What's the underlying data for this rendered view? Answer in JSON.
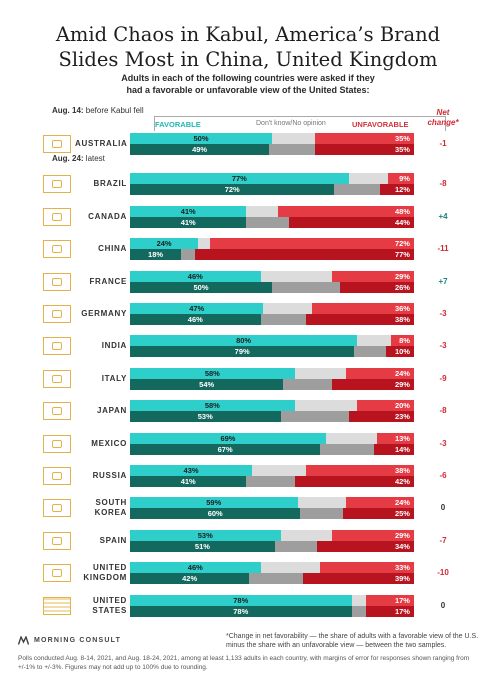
{
  "title_lines": [
    "Amid Chaos in Kabul, America’s Brand",
    "Slides Most in China, United Kingdom"
  ],
  "subtitle_lines": [
    "Adults in each of the following countries were asked if they",
    "had a favorable or unfavorable view of the United States:"
  ],
  "period_before": {
    "date": "Aug. 14:",
    "text": " before Kabul fell"
  },
  "period_latest": {
    "date": "Aug. 24:",
    "text": " latest"
  },
  "legend": {
    "favorable": "FAVORABLE",
    "dont_know": "Don't know/No opinion",
    "unfavorable": "UNFAVORABLE"
  },
  "net_change_label": [
    "Net",
    "change*"
  ],
  "colors": {
    "fav_before": "#2ecfcb",
    "fav_latest": "#14695f",
    "dk_before": "#dcdcdc",
    "dk_latest": "#9e9e9e",
    "unf_before": "#e53b44",
    "unf_latest": "#b8141f",
    "net_negative": "#d02a35",
    "net_positive": "#16857a",
    "net_zero": "#333333",
    "flag_outline": "#e3b24a"
  },
  "chart_data": {
    "type": "bar",
    "orientation": "horizontal",
    "stacked": true,
    "series_order": [
      "Favorable",
      "Don't know/No opinion",
      "Unfavorable"
    ],
    "rows": [
      {
        "country": [
          "AUSTRALIA"
        ],
        "before": {
          "fav": 50,
          "unf": 35,
          "fav_label": "50%",
          "unf_label": "35%"
        },
        "latest": {
          "fav": 49,
          "unf": 35,
          "fav_label": "49%",
          "unf_label": "35%"
        },
        "net": "-1"
      },
      {
        "country": [
          "BRAZIL"
        ],
        "before": {
          "fav": 77,
          "unf": 9,
          "fav_label": "77%",
          "unf_label": "9%"
        },
        "latest": {
          "fav": 72,
          "unf": 12,
          "fav_label": "72%",
          "unf_label": "12%"
        },
        "net": "-8"
      },
      {
        "country": [
          "CANADA"
        ],
        "before": {
          "fav": 41,
          "unf": 48,
          "fav_label": "41%",
          "unf_label": "48%"
        },
        "latest": {
          "fav": 41,
          "unf": 44,
          "fav_label": "41%",
          "unf_label": "44%"
        },
        "net": "+4"
      },
      {
        "country": [
          "CHINA"
        ],
        "before": {
          "fav": 24,
          "unf": 72,
          "fav_label": "24%",
          "unf_label": "72%"
        },
        "latest": {
          "fav": 18,
          "unf": 77,
          "fav_label": "18%",
          "unf_label": "77%"
        },
        "net": "-11"
      },
      {
        "country": [
          "FRANCE"
        ],
        "before": {
          "fav": 46,
          "unf": 29,
          "fav_label": "46%",
          "unf_label": "29%"
        },
        "latest": {
          "fav": 50,
          "unf": 26,
          "fav_label": "50%",
          "unf_label": "26%"
        },
        "net": "+7"
      },
      {
        "country": [
          "GERMANY"
        ],
        "before": {
          "fav": 47,
          "unf": 36,
          "fav_label": "47%",
          "unf_label": "36%"
        },
        "latest": {
          "fav": 46,
          "unf": 38,
          "fav_label": "46%",
          "unf_label": "38%"
        },
        "net": "-3"
      },
      {
        "country": [
          "INDIA"
        ],
        "before": {
          "fav": 80,
          "unf": 8,
          "fav_label": "80%",
          "unf_label": "8%"
        },
        "latest": {
          "fav": 79,
          "unf": 10,
          "fav_label": "79%",
          "unf_label": "10%"
        },
        "net": "-3"
      },
      {
        "country": [
          "ITALY"
        ],
        "before": {
          "fav": 58,
          "unf": 24,
          "fav_label": "58%",
          "unf_label": "24%"
        },
        "latest": {
          "fav": 54,
          "unf": 29,
          "fav_label": "54%",
          "unf_label": "29%"
        },
        "net": "-9"
      },
      {
        "country": [
          "JAPAN"
        ],
        "before": {
          "fav": 58,
          "unf": 20,
          "fav_label": "58%",
          "unf_label": "20%"
        },
        "latest": {
          "fav": 53,
          "unf": 23,
          "fav_label": "53%",
          "unf_label": "23%"
        },
        "net": "-8"
      },
      {
        "country": [
          "MEXICO"
        ],
        "before": {
          "fav": 69,
          "unf": 13,
          "fav_label": "69%",
          "unf_label": "13%"
        },
        "latest": {
          "fav": 67,
          "unf": 14,
          "fav_label": "67%",
          "unf_label": "14%"
        },
        "net": "-3"
      },
      {
        "country": [
          "RUSSIA"
        ],
        "before": {
          "fav": 43,
          "unf": 38,
          "fav_label": "43%",
          "unf_label": "38%"
        },
        "latest": {
          "fav": 41,
          "unf": 42,
          "fav_label": "41%",
          "unf_label": "42%"
        },
        "net": "-6"
      },
      {
        "country": [
          "SOUTH",
          "KOREA"
        ],
        "before": {
          "fav": 59,
          "unf": 24,
          "fav_label": "59%",
          "unf_label": "24%"
        },
        "latest": {
          "fav": 60,
          "unf": 25,
          "fav_label": "60%",
          "unf_label": "25%"
        },
        "net": "0"
      },
      {
        "country": [
          "SPAIN"
        ],
        "before": {
          "fav": 53,
          "unf": 29,
          "fav_label": "53%",
          "unf_label": "29%"
        },
        "latest": {
          "fav": 51,
          "unf": 34,
          "fav_label": "51%",
          "unf_label": "34%"
        },
        "net": "-7"
      },
      {
        "country": [
          "UNITED",
          "KINGDOM"
        ],
        "before": {
          "fav": 46,
          "unf": 33,
          "fav_label": "46%",
          "unf_label": "33%"
        },
        "latest": {
          "fav": 42,
          "unf": 39,
          "fav_label": "42%",
          "unf_label": "39%"
        },
        "net": "-10"
      },
      {
        "country": [
          "UNITED",
          "STATES"
        ],
        "before": {
          "fav": 78,
          "unf": 17,
          "fav_label": "78%",
          "unf_label": "17%"
        },
        "latest": {
          "fav": 78,
          "unf": 17,
          "fav_label": "78%",
          "unf_label": "17%"
        },
        "net": "0"
      }
    ]
  },
  "brand": "MORNING CONSULT",
  "footnote_change": "*Change in net favorability — the share of adults with a favorable view of the U.S. minus the share with an unfavorable view — between the two samples.",
  "footnote_method": "Polls conducted Aug. 8-14, 2021, and Aug. 18-24, 2021, among at least 1,133 adults in each country, with margins of error for responses shown ranging from +/-1% to +/-3%. Figures may not add up to 100% due to rounding."
}
